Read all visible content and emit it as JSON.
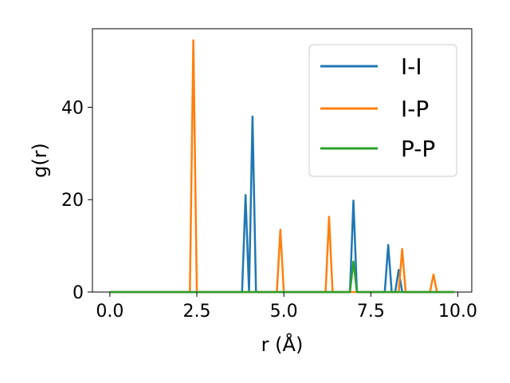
{
  "chart_data": {
    "type": "line",
    "title": "",
    "xlabel": "r (Å)",
    "ylabel": "g(r)",
    "xlim": [
      -0.5,
      10.4
    ],
    "ylim": [
      0,
      57
    ],
    "xticks": [
      0.0,
      2.5,
      5.0,
      7.5,
      10.0
    ],
    "xtick_labels": [
      "0.0",
      "2.5",
      "5.0",
      "7.5",
      "10.0"
    ],
    "yticks": [
      0,
      20,
      40
    ],
    "ytick_labels": [
      "0",
      "20",
      "40"
    ],
    "grid": false,
    "legend_position": "top-right",
    "x_start": 0.0,
    "x_end": 9.9,
    "x_step": 0.1,
    "series": [
      {
        "name": "I-I",
        "color": "#1f77b4",
        "peaks": [
          [
            3.9,
            21.0
          ],
          [
            4.1,
            38.0
          ],
          [
            7.0,
            19.8
          ],
          [
            8.0,
            10.2
          ],
          [
            8.3,
            4.8
          ]
        ]
      },
      {
        "name": "I-P",
        "color": "#ff7f0e",
        "peaks": [
          [
            2.4,
            54.5
          ],
          [
            4.9,
            13.5
          ],
          [
            6.3,
            16.3
          ],
          [
            8.4,
            9.3
          ],
          [
            9.3,
            3.8
          ]
        ]
      },
      {
        "name": "P-P",
        "color": "#2ca02c",
        "peaks": [
          [
            7.0,
            6.6
          ]
        ]
      }
    ]
  }
}
